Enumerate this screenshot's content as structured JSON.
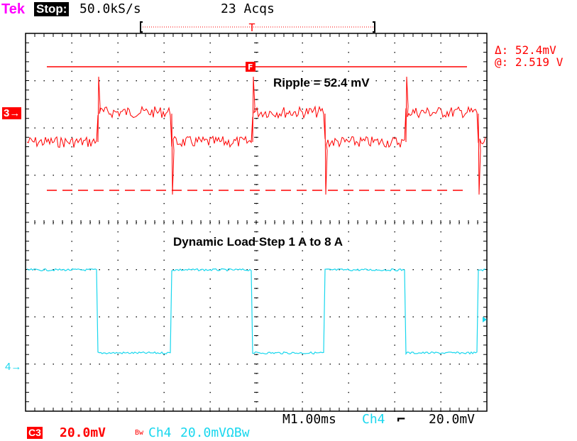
{
  "header": {
    "brand": "Tek",
    "run_state": "Stop:",
    "sample_rate": "50.0kS/s",
    "acquisitions": "23 Acqs"
  },
  "cursor_readout": {
    "delta": "Δ: 52.4mV",
    "at": "@: 2.519 V"
  },
  "channel_markers": {
    "ch3": "3→",
    "ch4": "4→"
  },
  "annotations": {
    "ripple": "Ripple = 52.4 mV",
    "load_step": "Dynamic Load Step 1 A to 8 A"
  },
  "footer": {
    "timebase": "M1.00ms",
    "trigger_source": "Ch4",
    "trigger_slope": "⌐",
    "trigger_level": "20.0mV",
    "ch3_id": "C3",
    "ch3_scale": "20.0mV",
    "ch3_bw": "Bw",
    "ch4_name": "Ch4",
    "ch4_scale": "20.0mVΩBw"
  },
  "colors": {
    "ch3": "#ff0000",
    "ch4": "#19d7ee",
    "brand": "#ff00ff",
    "grid": "#000000"
  }
}
